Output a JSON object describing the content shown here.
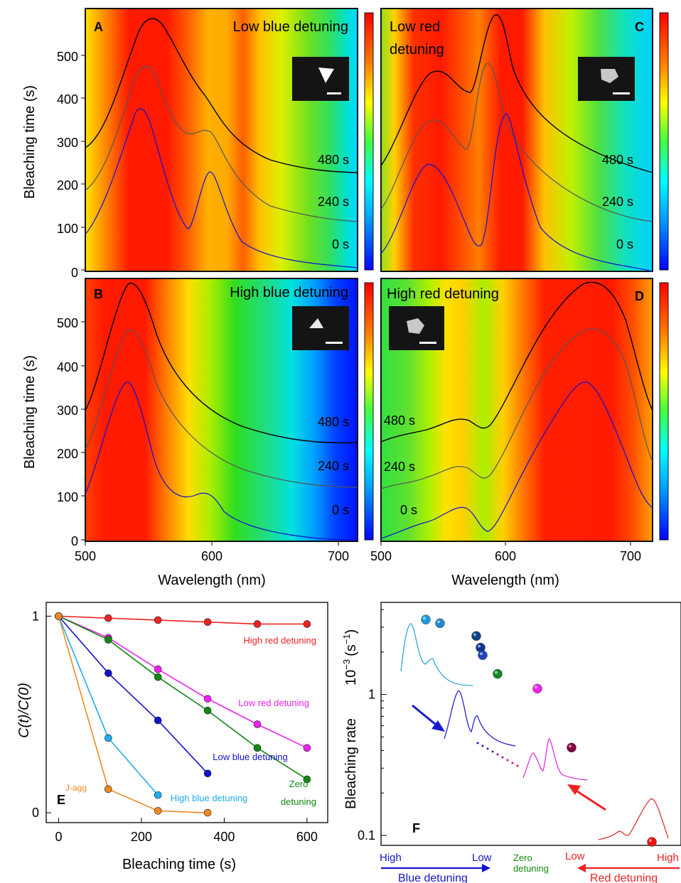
{
  "panels": {
    "A": {
      "letter": "A",
      "title": "Low blue detuning",
      "labels": [
        "480 s",
        "240 s",
        "0 s"
      ]
    },
    "B": {
      "letter": "B",
      "title": "High blue detuning",
      "labels": [
        "480 s",
        "240 s",
        "0 s"
      ]
    },
    "C": {
      "letter": "C",
      "title_line1": "Low red",
      "title_line2": "detuning",
      "labels": [
        "480 s",
        "240 s",
        "0 s"
      ]
    },
    "D": {
      "letter": "D",
      "title": "High red detuning",
      "labels": [
        "480 s",
        "240 s",
        "0 s"
      ]
    }
  },
  "axes_top": {
    "ylabel": "Bleaching time (s)",
    "xlabel": "Wavelength (nm)",
    "yticks": [
      "0",
      "100",
      "200",
      "300",
      "400",
      "500"
    ],
    "xticks": [
      "500",
      "600",
      "700"
    ]
  },
  "colors": {
    "red": "#ff0000",
    "yellow": "#ffff00",
    "green": "#33cc33",
    "cyan": "#00ffff",
    "blue": "#0000ff"
  },
  "chart_data": [
    {
      "panel": "E",
      "type": "line",
      "xlabel": "Bleaching time (s)",
      "ylabel": "C(t)/C(0)",
      "xlim": [
        -30,
        650
      ],
      "ylim": [
        -0.05,
        1.07
      ],
      "xticks": [
        "0",
        "200",
        "400",
        "600"
      ],
      "yticks": [
        "0",
        "1"
      ],
      "series": [
        {
          "name": "High red detuning",
          "color": "#ee2222",
          "x": [
            0,
            120,
            240,
            360,
            480,
            600
          ],
          "y": [
            1.0,
            0.99,
            0.98,
            0.97,
            0.96,
            0.96
          ]
        },
        {
          "name": "Low red detuning",
          "color": "#ee22ee",
          "x": [
            0,
            120,
            240,
            360,
            480,
            600
          ],
          "y": [
            1.0,
            0.89,
            0.73,
            0.58,
            0.45,
            0.33
          ]
        },
        {
          "name": "Zero detuning",
          "color": "#118811",
          "x": [
            0,
            120,
            240,
            360,
            480,
            600
          ],
          "y": [
            1.0,
            0.88,
            0.69,
            0.52,
            0.33,
            0.17
          ]
        },
        {
          "name": "Low blue detuning",
          "color": "#1111cc",
          "x": [
            0,
            120,
            240,
            360
          ],
          "y": [
            1.0,
            0.71,
            0.47,
            0.2
          ]
        },
        {
          "name": "High blue detuning",
          "color": "#22aaee",
          "x": [
            0,
            120,
            240
          ],
          "y": [
            1.0,
            0.38,
            0.09
          ]
        },
        {
          "name": "J-agg",
          "color": "#ee8822",
          "x": [
            0,
            120,
            240,
            360
          ],
          "y": [
            1.0,
            0.12,
            0.01,
            0.0
          ]
        }
      ],
      "annotations": {
        "letter": "E",
        "zero_line1": "Zero",
        "zero_line2": "detuning"
      }
    },
    {
      "panel": "F",
      "type": "scatter",
      "ylabel_main": "Bleaching rate",
      "ylabel_unit": "10",
      "ylabel_exp": "−3",
      "ylabel_tail": "(s",
      "ylabel_tail_exp": "−1",
      "ylabel_close": ")",
      "yscale": "log",
      "ylim": [
        0.085,
        4.5
      ],
      "yticks": [
        "0.1",
        "1"
      ],
      "points": [
        {
          "group": "High blue detuning",
          "y": 3.4,
          "color": "#2299dd"
        },
        {
          "group": "High blue detuning",
          "y": 3.2,
          "color": "#2288cc"
        },
        {
          "group": "Low blue detuning",
          "y": 2.6,
          "color": "#114488"
        },
        {
          "group": "Low blue detuning",
          "y": 2.15,
          "color": "#113399"
        },
        {
          "group": "Low blue detuning",
          "y": 1.9,
          "color": "#2244bb"
        },
        {
          "group": "Zero detuning",
          "y": 1.4,
          "color": "#118822"
        },
        {
          "group": "Low red detuning",
          "y": 1.1,
          "color": "#ee22ee"
        },
        {
          "group": "Low red detuning",
          "y": 0.42,
          "color": "#880044"
        },
        {
          "group": "High red detuning",
          "y": 0.09,
          "color": "#ee1111"
        }
      ],
      "axis_text": {
        "letter": "F",
        "blue_high": "High",
        "blue_low": "Low",
        "blue_label": "Blue detuning",
        "zero_line1": "Zero",
        "zero_line2": "detuning",
        "red_low": "Low",
        "red_high": "High",
        "red_label": "Red detuning"
      }
    }
  ]
}
